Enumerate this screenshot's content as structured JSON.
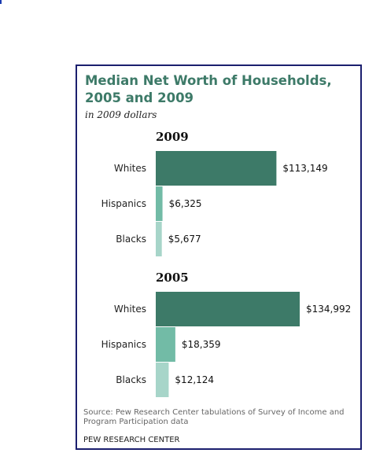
{
  "title": "Median Net Worth of Households, 2005 and 2009",
  "subtitle": "in 2009 dollars",
  "source": "Source: Pew Research Center tabulations of Survey of Income and Program Participation data",
  "credit": "PEW RESEARCH CENTER",
  "colors": {
    "whites": "#3d7a68",
    "hispanics": "#72bba6",
    "blacks": "#a7d5c9",
    "frame": "#1b1f6e",
    "title": "#3d7a68"
  },
  "chart_data": [
    {
      "type": "bar",
      "orientation": "horizontal",
      "title": "2009",
      "categories": [
        "Whites",
        "Hispanics",
        "Blacks"
      ],
      "values": [
        113149,
        6325,
        5677
      ],
      "value_labels": [
        "$113,149",
        "$6,325",
        "$5,677"
      ],
      "xlim": [
        0,
        134992
      ],
      "grid": false,
      "legend": "none"
    },
    {
      "type": "bar",
      "orientation": "horizontal",
      "title": "2005",
      "categories": [
        "Whites",
        "Hispanics",
        "Blacks"
      ],
      "values": [
        134992,
        18359,
        12124
      ],
      "value_labels": [
        "$134,992",
        "$18,359",
        "$12,124"
      ],
      "xlim": [
        0,
        134992
      ],
      "grid": false,
      "legend": "none"
    }
  ]
}
